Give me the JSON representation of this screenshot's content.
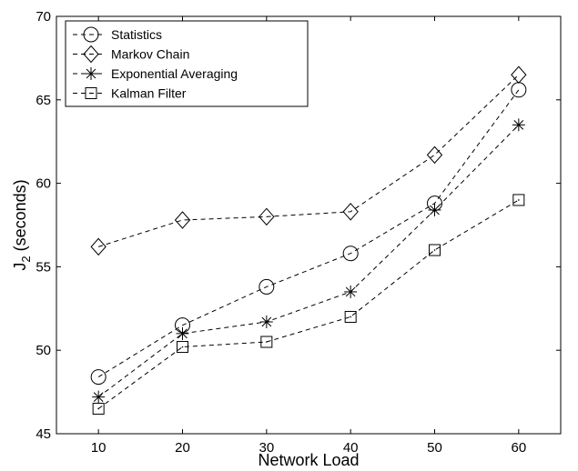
{
  "chart_data": {
    "type": "line",
    "xlabel": "Network Load",
    "ylabel": "J",
    "ylabel_subscript": "2",
    "ylabel_suffix": " (seconds)",
    "x": [
      10,
      20,
      30,
      40,
      50,
      60
    ],
    "xlim": [
      5,
      65
    ],
    "ylim": [
      45,
      70
    ],
    "xticks": [
      "10",
      "20",
      "30",
      "40",
      "50",
      "60"
    ],
    "yticks": [
      "45",
      "50",
      "55",
      "60",
      "65",
      "70"
    ],
    "grid": false,
    "legend_position": "top-left",
    "line_style": "dashed",
    "color": "#000000",
    "series": [
      {
        "name": "Statistics",
        "marker": "circle",
        "values": [
          48.4,
          51.5,
          53.8,
          55.8,
          58.8,
          65.6
        ]
      },
      {
        "name": "Markov Chain",
        "marker": "diamond",
        "values": [
          56.2,
          57.8,
          58.0,
          58.3,
          61.7,
          66.5
        ]
      },
      {
        "name": "Exponential Averaging",
        "marker": "star",
        "values": [
          47.2,
          51.0,
          51.7,
          53.5,
          58.4,
          63.5
        ]
      },
      {
        "name": "Kalman Filter",
        "marker": "square",
        "values": [
          46.5,
          50.2,
          50.5,
          52.0,
          56.0,
          59.0
        ]
      }
    ]
  }
}
